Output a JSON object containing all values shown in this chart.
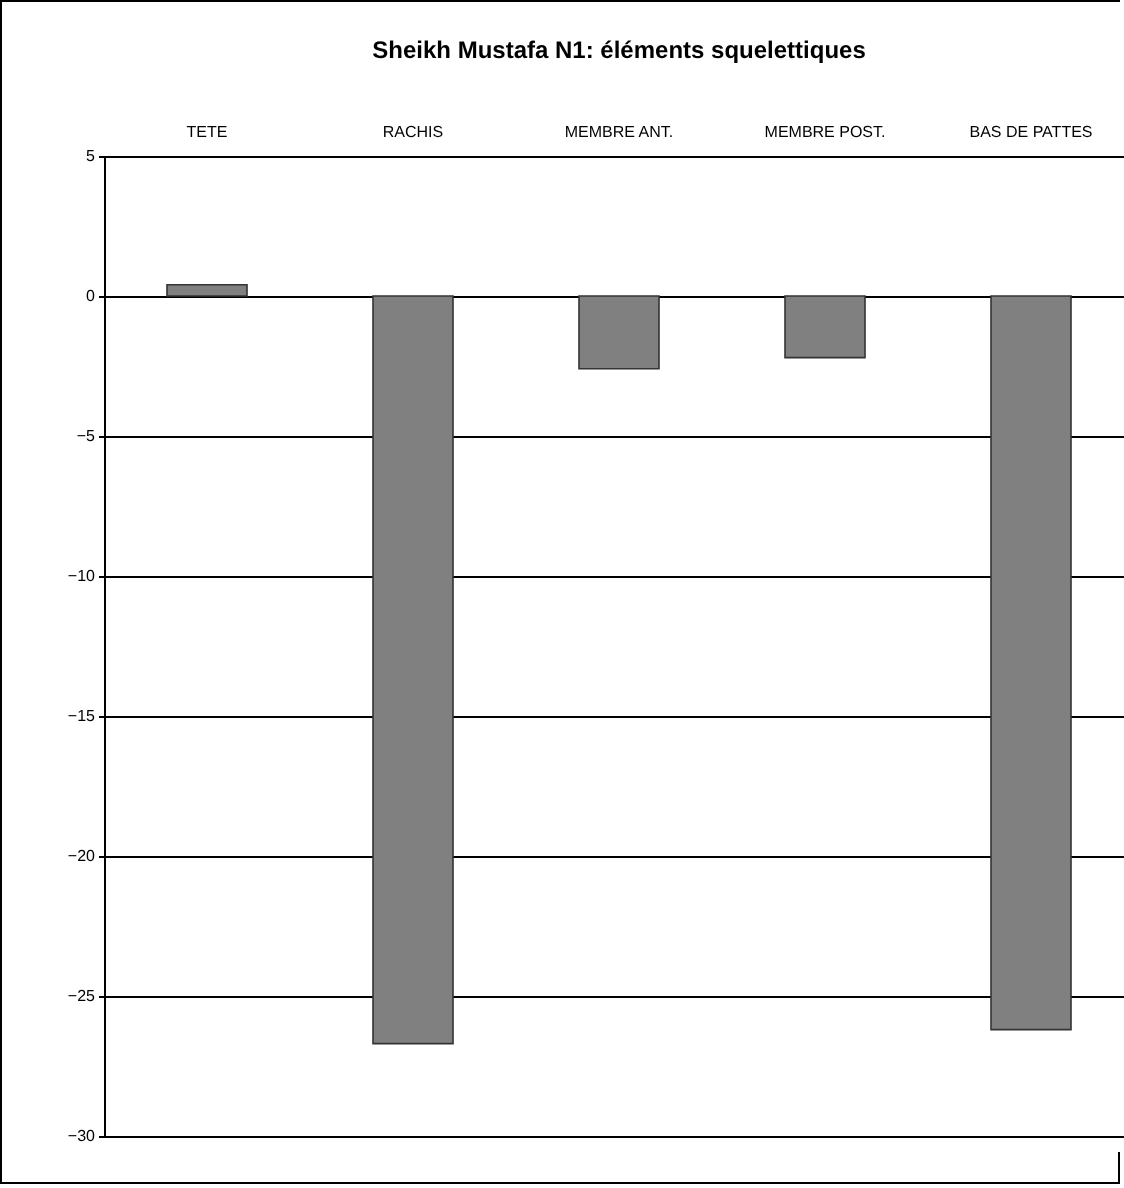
{
  "chart_data": {
    "type": "bar",
    "title": "Sheikh Mustafa N1: éléments squelettiques",
    "categories": [
      "TETE",
      "RACHIS",
      "MEMBRE ANT.",
      "MEMBRE POST.",
      "BAS DE PATTES"
    ],
    "values": [
      0.4,
      -26.7,
      -2.6,
      -2.2,
      -26.2
    ],
    "color": "#808080",
    "ylim": [
      -30,
      5
    ],
    "yticks": [
      -30,
      -25,
      -20,
      -15,
      -10,
      -5,
      0,
      5
    ],
    "grid": "y"
  }
}
